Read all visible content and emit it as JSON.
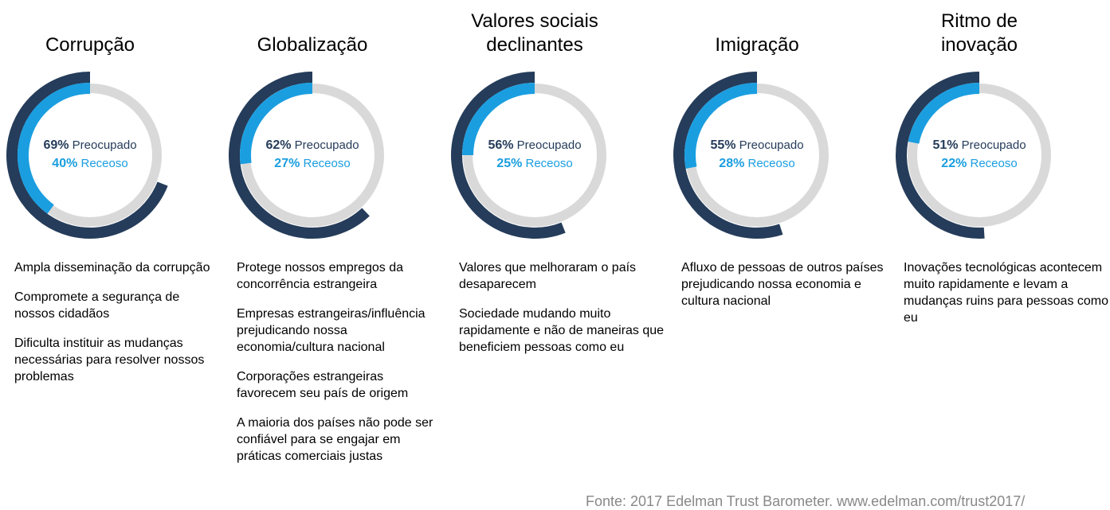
{
  "chart_data": [
    {
      "type": "donut",
      "title": "Corrupção",
      "series": [
        {
          "name": "Preocupado",
          "color": "#253c5a",
          "values": [
            69
          ],
          "value_labels": [
            "69%"
          ]
        },
        {
          "name": "Receoso",
          "color": "#1a9ee0",
          "values": [
            40
          ],
          "value_labels": [
            "40%"
          ]
        }
      ],
      "notes": [
        "Ampla disseminação da corrupção",
        "Compromete a segurança de nossos cidadãos",
        "Dificulta instituir as mudanças necessárias para resolver nossos problemas"
      ]
    },
    {
      "type": "donut",
      "title": "Globalização",
      "series": [
        {
          "name": "Preocupado",
          "color": "#253c5a",
          "values": [
            62
          ],
          "value_labels": [
            "62%"
          ]
        },
        {
          "name": "Receoso",
          "color": "#1a9ee0",
          "values": [
            27
          ],
          "value_labels": [
            "27%"
          ]
        }
      ],
      "notes": [
        "Protege nossos empregos da concorrência estrangeira",
        "Empresas estrangeiras/influência prejudicando nossa economia/cultura nacional",
        "Corporações estrangeiras favorecem seu país de origem",
        "A maioria dos países não pode ser confiável para se engajar em práticas comerciais justas"
      ]
    },
    {
      "type": "donut",
      "title": "Valores sociais declinantes",
      "series": [
        {
          "name": "Preocupado",
          "color": "#253c5a",
          "values": [
            56
          ],
          "value_labels": [
            "56%"
          ]
        },
        {
          "name": "Receoso",
          "color": "#1a9ee0",
          "values": [
            25
          ],
          "value_labels": [
            "25%"
          ]
        }
      ],
      "notes": [
        "Valores que melhoraram o país desaparecem",
        "Sociedade mudando muito rapidamente e não de maneiras que beneficiem pessoas como eu"
      ]
    },
    {
      "type": "donut",
      "title": "Imigração",
      "series": [
        {
          "name": "Preocupado",
          "color": "#253c5a",
          "values": [
            55
          ],
          "value_labels": [
            "55%"
          ]
        },
        {
          "name": "Receoso",
          "color": "#1a9ee0",
          "values": [
            28
          ],
          "value_labels": [
            "28%"
          ]
        }
      ],
      "notes": [
        "Afluxo de pessoas de outros países prejudicando nossa economia e cultura nacional"
      ]
    },
    {
      "type": "donut",
      "title": "Ritmo de inovação",
      "series": [
        {
          "name": "Preocupado",
          "color": "#253c5a",
          "values": [
            51
          ],
          "value_labels": [
            "51%"
          ]
        },
        {
          "name": "Receoso",
          "color": "#1a9ee0",
          "values": [
            22
          ],
          "value_labels": [
            "22%"
          ]
        }
      ],
      "notes": [
        "Inovações tecnológicas acontecem muito rapidamente e levam a mudanças ruins para pessoas como eu"
      ]
    }
  ],
  "source": "Fonte: 2017 Edelman Trust Barometer. www.edelman.com/trust2017/"
}
